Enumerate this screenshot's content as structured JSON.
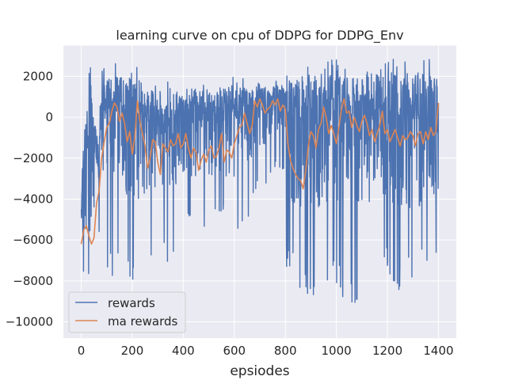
{
  "chart_data": {
    "type": "line",
    "title": "learning curve on cpu of DDPG for DDPG_Env",
    "xlabel": "epsiodes",
    "ylabel": "",
    "xlim": [
      -70,
      1470
    ],
    "ylim": [
      -10800,
      3500
    ],
    "xticks": [
      0,
      200,
      400,
      600,
      800,
      1000,
      1200,
      1400
    ],
    "yticks": [
      -10000,
      -8000,
      -6000,
      -4000,
      -2000,
      0,
      2000
    ],
    "grid": true,
    "legend_position": "lower-left",
    "series": [
      {
        "name": "rewards",
        "color": "#4c72b0",
        "x_start": 0,
        "x_end": 1400,
        "n_points": 1401,
        "envelope": {
          "x": [
            0,
            20,
            40,
            60,
            70,
            75,
            80,
            150,
            200,
            250,
            300,
            350,
            400,
            450,
            500,
            550,
            600,
            650,
            700,
            750,
            790,
            800,
            805,
            850,
            900,
            950,
            1000,
            1050,
            1100,
            1150,
            1200,
            1250,
            1300,
            1350,
            1400
          ],
          "high": [
            -1500,
            1800,
            2600,
            1000,
            -1000,
            2300,
            2400,
            2700,
            2800,
            2300,
            2000,
            1700,
            1900,
            1700,
            1800,
            1600,
            2100,
            1800,
            1700,
            1700,
            1900,
            1800,
            2000,
            2800,
            2500,
            2600,
            3000,
            2200,
            2800,
            2600,
            3000,
            2700,
            3000,
            3000,
            2600
          ],
          "low": [
            -7600,
            -7600,
            -7800,
            -7000,
            -6000,
            -7500,
            -7000,
            -8500,
            -8000,
            -8200,
            -6700,
            -7500,
            -5500,
            -5500,
            -5500,
            -4800,
            -6000,
            -5000,
            -3800,
            -3000,
            -3000,
            -3000,
            -7500,
            -8500,
            -8800,
            -8200,
            -8500,
            -9400,
            -10100,
            -8000,
            -7700,
            -8900,
            -7900,
            -7600,
            -7300
          ],
          "typ_high": [
            -2500,
            500,
            1200,
            -500,
            -1500,
            1700,
            1800,
            2000,
            1900,
            1700,
            1300,
            1200,
            1400,
            1300,
            1200,
            1300,
            1500,
            1400,
            1500,
            1500,
            1600,
            1500,
            1700,
            2200,
            2100,
            2100,
            2200,
            1800,
            2200,
            2100,
            2300,
            2100,
            2200,
            2200,
            2000
          ],
          "typ_low": [
            -6500,
            -6000,
            -6500,
            -5500,
            -4500,
            -4000,
            -3500,
            -3500,
            -4000,
            -4000,
            -3500,
            -3500,
            -3000,
            -3000,
            -3000,
            -2800,
            -3000,
            -2500,
            -1500,
            -1000,
            -500,
            -800,
            -4000,
            -4500,
            -5000,
            -4500,
            -5000,
            -4500,
            -4500,
            -4500,
            -4000,
            -4500,
            -4500,
            -4500,
            -4000
          ]
        }
      },
      {
        "name": "ma rewards",
        "color": "#dd8452",
        "x": [
          0,
          10,
          20,
          30,
          40,
          50,
          60,
          70,
          80,
          90,
          100,
          110,
          120,
          130,
          140,
          150,
          160,
          170,
          180,
          190,
          200,
          210,
          220,
          230,
          240,
          250,
          260,
          270,
          280,
          290,
          300,
          310,
          320,
          330,
          340,
          350,
          360,
          370,
          380,
          390,
          400,
          410,
          420,
          430,
          440,
          450,
          460,
          470,
          480,
          490,
          500,
          510,
          520,
          530,
          540,
          550,
          560,
          570,
          580,
          590,
          600,
          610,
          620,
          630,
          640,
          650,
          660,
          670,
          680,
          690,
          700,
          710,
          720,
          730,
          740,
          750,
          760,
          770,
          780,
          790,
          800,
          810,
          820,
          830,
          840,
          850,
          860,
          870,
          880,
          890,
          900,
          910,
          920,
          930,
          940,
          950,
          960,
          970,
          980,
          990,
          1000,
          1010,
          1020,
          1030,
          1040,
          1050,
          1060,
          1070,
          1080,
          1090,
          1100,
          1110,
          1120,
          1130,
          1140,
          1150,
          1160,
          1170,
          1180,
          1190,
          1200,
          1210,
          1220,
          1230,
          1240,
          1250,
          1260,
          1270,
          1280,
          1290,
          1300,
          1310,
          1320,
          1330,
          1340,
          1350,
          1360,
          1370,
          1380,
          1390,
          1400
        ],
        "y": [
          -6200,
          -5500,
          -5300,
          -5800,
          -6200,
          -5900,
          -4200,
          -3600,
          -2000,
          -1200,
          -500,
          -300,
          300,
          700,
          500,
          -200,
          200,
          -300,
          -1200,
          -700,
          -1800,
          -1000,
          800,
          -200,
          -800,
          -1400,
          -2500,
          -2000,
          -1100,
          -1200,
          -2200,
          -2800,
          -1300,
          -1500,
          -1700,
          -1100,
          -1400,
          -1300,
          -800,
          -1500,
          -1300,
          -800,
          -1500,
          -2000,
          -1500,
          -1700,
          -2600,
          -2100,
          -1800,
          -2200,
          -1600,
          -1400,
          -2000,
          -1900,
          -1500,
          -800,
          -2200,
          -1600,
          -1700,
          -2000,
          -1300,
          -900,
          -500,
          -400,
          200,
          -300,
          -800,
          -400,
          800,
          500,
          900,
          600,
          200,
          400,
          500,
          800,
          600,
          900,
          300,
          600,
          400,
          -1300,
          -2100,
          -2500,
          -2800,
          -3000,
          -3100,
          -3500,
          -2600,
          -1400,
          -700,
          -900,
          -1500,
          -600,
          -300,
          500,
          0,
          -800,
          -400,
          -800,
          -1300,
          -500,
          400,
          900,
          200,
          300,
          -500,
          0,
          -400,
          -700,
          -200,
          100,
          -300,
          -900,
          -600,
          -1200,
          -800,
          -400,
          300,
          -800,
          -600,
          -1200,
          -900,
          -600,
          -1000,
          -1400,
          -900,
          -1100,
          -1000,
          -700,
          -900,
          -1400,
          -800,
          -700,
          -1300,
          -700,
          -1100,
          -500,
          -900,
          -700,
          700
        ]
      }
    ]
  }
}
